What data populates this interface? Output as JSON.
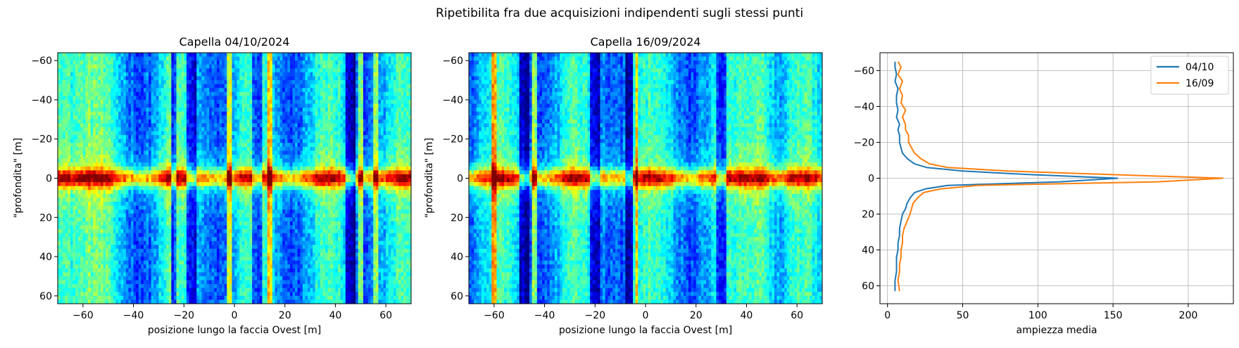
{
  "suptitle": "Ripetibilita fra due acquisizioni indipendenti sugli stessi punti",
  "colormap_stops": [
    "#00007f",
    "#0000ff",
    "#007fff",
    "#00ffff",
    "#7fff7f",
    "#ffff00",
    "#ff7f00",
    "#ff0000",
    "#7f0000"
  ],
  "chart_data": [
    {
      "type": "heatmap",
      "title": "Capella 04/10/2024",
      "xlabel": "posizione lungo la faccia Ovest [m]",
      "ylabel": "\"profondita\" [m]",
      "xlim": [
        -70,
        70
      ],
      "ylim": [
        64,
        -64
      ],
      "xticks": [
        -60,
        -40,
        -20,
        0,
        20,
        40,
        60
      ],
      "yticks": [
        -60,
        -40,
        -20,
        0,
        20,
        40,
        60
      ],
      "features": {
        "left_strong_region_x": [
          -70,
          -50
        ],
        "bright_vertical_lines_x": [
          -26,
          -2,
          14,
          50,
          56
        ],
        "dark_vertical_lines_x": [
          -25,
          -17,
          9,
          46
        ],
        "bright_band_depth": 0
      }
    },
    {
      "type": "heatmap",
      "title": "Capella 16/09/2024",
      "xlabel": "posizione lungo la faccia Ovest [m]",
      "ylabel": "\"profondita\" [m]",
      "xlim": [
        -70,
        70
      ],
      "ylim": [
        64,
        -64
      ],
      "xticks": [
        -60,
        -40,
        -20,
        0,
        20,
        40,
        60
      ],
      "yticks": [
        -60,
        -40,
        -20,
        0,
        20,
        40,
        60
      ],
      "features": {
        "strong_vertical_region_x": [
          36,
          54
        ],
        "bright_vertical_lines_x": [
          -60,
          -44,
          -4
        ],
        "dark_vertical_lines_x": [
          -48,
          -20,
          -6,
          30
        ],
        "bright_band_depth": 0
      }
    },
    {
      "type": "line",
      "title": "",
      "xlabel": "ampiezza media",
      "ylabel": "",
      "xlim": [
        -5,
        230
      ],
      "ylim": [
        70,
        -70
      ],
      "xticks": [
        0,
        50,
        100,
        150,
        200
      ],
      "yticks": [
        -60,
        -40,
        -20,
        0,
        20,
        40,
        60
      ],
      "grid": true,
      "legend_position": "top-right",
      "series": [
        {
          "name": "04/10",
          "color": "#1f77b4",
          "x": [
            5,
            5,
            6,
            5,
            7,
            6,
            6,
            7,
            6,
            8,
            7,
            8,
            8,
            9,
            10,
            13,
            18,
            26,
            50,
            95,
            153,
            115,
            40,
            25,
            18,
            15,
            13,
            12,
            10,
            9,
            8,
            8,
            7,
            7,
            6,
            6,
            6,
            5,
            5
          ],
          "y": [
            -65,
            -62,
            -58,
            -54,
            -50,
            -46,
            -42,
            -38,
            -34,
            -30,
            -27,
            -24,
            -20,
            -17,
            -14,
            -11,
            -8,
            -6,
            -4,
            -2,
            0,
            2,
            4,
            6,
            8,
            11,
            14,
            17,
            20,
            24,
            28,
            32,
            36,
            40,
            44,
            48,
            52,
            57,
            63
          ]
        },
        {
          "name": "16/09",
          "color": "#ff7f0e",
          "x": [
            7,
            9,
            7,
            10,
            8,
            10,
            9,
            12,
            10,
            12,
            12,
            14,
            14,
            16,
            18,
            22,
            28,
            40,
            80,
            150,
            223,
            180,
            60,
            35,
            24,
            20,
            17,
            16,
            15,
            13,
            11,
            10,
            10,
            9,
            9,
            8,
            8,
            7,
            8
          ],
          "y": [
            -65,
            -62,
            -58,
            -54,
            -50,
            -46,
            -42,
            -38,
            -34,
            -30,
            -27,
            -24,
            -20,
            -17,
            -14,
            -11,
            -8,
            -6,
            -4,
            -2,
            0,
            2,
            4,
            6,
            8,
            11,
            14,
            17,
            20,
            24,
            28,
            32,
            36,
            40,
            44,
            48,
            52,
            57,
            63
          ]
        }
      ]
    }
  ]
}
